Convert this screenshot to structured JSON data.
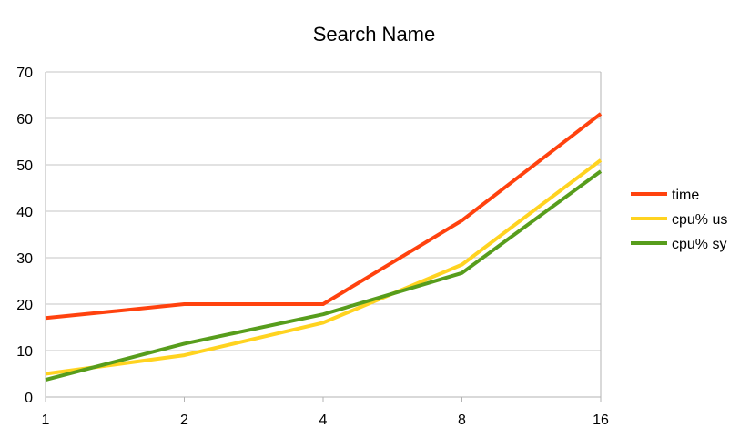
{
  "chart_data": {
    "type": "line",
    "title": "Search Name",
    "xlabel": "",
    "ylabel": "",
    "categories": [
      "1",
      "2",
      "4",
      "8",
      "16"
    ],
    "ylim": [
      0,
      70
    ],
    "yticks": [
      0,
      10,
      20,
      30,
      40,
      50,
      60,
      70
    ],
    "grid": true,
    "legend_position": "right",
    "series": [
      {
        "name": "time",
        "color": "#ff420e",
        "values": [
          17,
          20,
          20,
          38,
          61
        ]
      },
      {
        "name": "cpu% us",
        "color": "#ffd320",
        "values": [
          5,
          9,
          16,
          28.5,
          51
        ]
      },
      {
        "name": "cpu% sy",
        "color": "#579d1c",
        "values": [
          3.7,
          11.5,
          17.8,
          26.7,
          48.6
        ]
      }
    ]
  }
}
